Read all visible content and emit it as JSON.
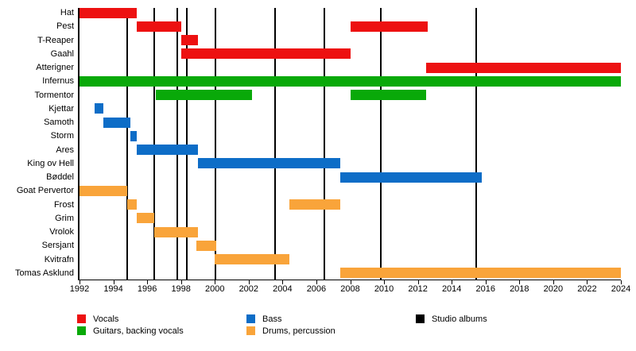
{
  "chart_data": {
    "type": "timeline",
    "description": "Band member timeline (Gantt-style) with studio album markers",
    "x_axis": {
      "start": 1992,
      "end": 2024,
      "tick_interval": 2,
      "ticks": [
        1992,
        1994,
        1996,
        1998,
        2000,
        2002,
        2004,
        2006,
        2008,
        2010,
        2012,
        2014,
        2016,
        2018,
        2020,
        2022,
        2024
      ]
    },
    "colors": {
      "vocals": "#ED1111",
      "guitars": "#09A909",
      "bass": "#0D6DC7",
      "drums": "#F9A43A",
      "albums": "#000000"
    },
    "rows": [
      {
        "label": "Hat",
        "role": "vocals",
        "bars": [
          {
            "start": 1992.0,
            "end": 1995.4
          }
        ]
      },
      {
        "label": "Pest",
        "role": "vocals",
        "bars": [
          {
            "start": 1995.4,
            "end": 1998.0
          },
          {
            "start": 2008.0,
            "end": 2012.6
          }
        ]
      },
      {
        "label": "T-Reaper",
        "role": "vocals",
        "bars": [
          {
            "start": 1998.0,
            "end": 1999.0
          }
        ]
      },
      {
        "label": "Gaahl",
        "role": "vocals",
        "bars": [
          {
            "start": 1998.0,
            "end": 2008.0
          }
        ]
      },
      {
        "label": "Atterigner",
        "role": "vocals",
        "bars": [
          {
            "start": 2012.5,
            "end": 2024.0
          }
        ]
      },
      {
        "label": "Infernus",
        "role": "guitars",
        "bars": [
          {
            "start": 1992.0,
            "end": 2024.0
          }
        ]
      },
      {
        "label": "Tormentor",
        "role": "guitars",
        "bars": [
          {
            "start": 1996.5,
            "end": 2002.2
          },
          {
            "start": 2008.0,
            "end": 2012.5
          }
        ]
      },
      {
        "label": "Kjettar",
        "role": "bass",
        "bars": [
          {
            "start": 1992.9,
            "end": 1993.4
          }
        ]
      },
      {
        "label": "Samoth",
        "role": "bass",
        "bars": [
          {
            "start": 1993.4,
            "end": 1995.0
          }
        ]
      },
      {
        "label": "Storm",
        "role": "bass",
        "bars": [
          {
            "start": 1995.0,
            "end": 1995.4
          }
        ]
      },
      {
        "label": "Ares",
        "role": "bass",
        "bars": [
          {
            "start": 1995.4,
            "end": 1999.0
          }
        ]
      },
      {
        "label": "King ov Hell",
        "role": "bass",
        "bars": [
          {
            "start": 1999.0,
            "end": 2007.4
          }
        ]
      },
      {
        "label": "Bøddel",
        "role": "bass",
        "bars": [
          {
            "start": 2007.4,
            "end": 2015.8
          }
        ]
      },
      {
        "label": "Goat Pervertor",
        "role": "drums",
        "bars": [
          {
            "start": 1992.0,
            "end": 1994.8
          }
        ]
      },
      {
        "label": "Frost",
        "role": "drums",
        "bars": [
          {
            "start": 1994.8,
            "end": 1995.4
          },
          {
            "start": 2004.4,
            "end": 2007.4
          }
        ]
      },
      {
        "label": "Grim",
        "role": "drums",
        "bars": [
          {
            "start": 1995.4,
            "end": 1996.4
          }
        ]
      },
      {
        "label": "Vrolok",
        "role": "drums",
        "bars": [
          {
            "start": 1996.4,
            "end": 1999.0
          }
        ]
      },
      {
        "label": "Sersjant",
        "role": "drums",
        "bars": [
          {
            "start": 1998.9,
            "end": 2000.1
          }
        ]
      },
      {
        "label": "Kvitrafn",
        "role": "drums",
        "bars": [
          {
            "start": 2000.0,
            "end": 2004.4
          }
        ]
      },
      {
        "label": "Tomas Asklund",
        "role": "drums",
        "bars": [
          {
            "start": 2007.4,
            "end": 2024.0
          }
        ]
      }
    ],
    "studio_albums": [
      1994.8,
      1996.4,
      1997.8,
      1998.35,
      2000.05,
      2003.55,
      2006.45,
      2009.8,
      2015.45
    ],
    "legend": [
      {
        "label": "Vocals",
        "color_key": "vocals"
      },
      {
        "label": "Guitars, backing vocals",
        "color_key": "guitars"
      },
      {
        "label": "Bass",
        "color_key": "bass"
      },
      {
        "label": "Drums, percussion",
        "color_key": "drums"
      },
      {
        "label": "Studio albums",
        "color_key": "albums"
      }
    ]
  }
}
